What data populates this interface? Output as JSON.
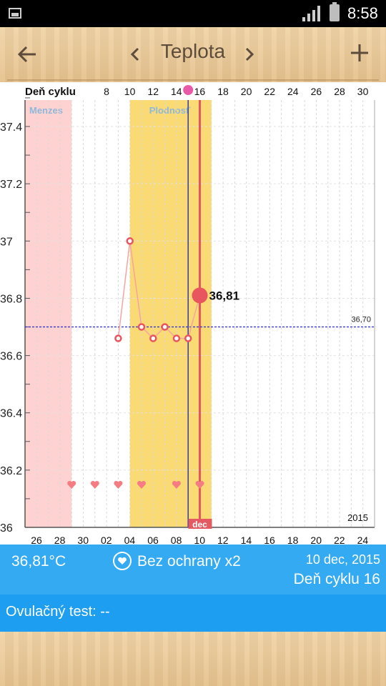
{
  "status_bar": {
    "time": "8:58",
    "icons": [
      "image-icon",
      "signal-icon",
      "battery-icon"
    ]
  },
  "header": {
    "title": "Teplota",
    "back_icon": "arrow-left-icon",
    "prev_icon": "chevron-left-icon",
    "next_icon": "chevron-right-icon",
    "add_icon": "plus-icon"
  },
  "chart_data": {
    "type": "line",
    "top_axis_label": "Deň cyklu",
    "top_ticks": [
      "8",
      "10",
      "12",
      "14",
      "16",
      "18",
      "20",
      "22",
      "24",
      "26",
      "28",
      "30"
    ],
    "bottom_ticks": [
      "26",
      "28",
      "30",
      "02",
      "04",
      "06",
      "08",
      "10",
      "12",
      "14",
      "16",
      "18",
      "20",
      "22",
      "24"
    ],
    "y_ticks": [
      "36",
      "36.2",
      "36.4",
      "36.6",
      "36.8",
      "37",
      "37.2",
      "37.4"
    ],
    "ylim": [
      36.0,
      37.5
    ],
    "regions": [
      {
        "label": "Menzes",
        "x_start": 25,
        "x_end": 29,
        "color": "#ffd2d2"
      },
      {
        "label": "Plodnosť",
        "x_start": 34,
        "x_end": 41,
        "color": "#f9da74"
      }
    ],
    "series": [
      {
        "x": [
          33,
          34,
          35,
          36,
          37,
          38,
          39,
          40
        ],
        "y": [
          36.66,
          37.0,
          36.7,
          36.66,
          36.7,
          36.66,
          36.66,
          36.81
        ]
      }
    ],
    "current_point": {
      "x": 40,
      "y": 36.81,
      "label": "36,81"
    },
    "coverline": {
      "y": 36.7,
      "label": "36,70"
    },
    "ovulation_day_x": 39,
    "hearts_x": [
      29,
      31,
      33,
      35,
      38,
      40
    ],
    "month_marker": {
      "x": 40,
      "label": "dec"
    },
    "year_label": "2015",
    "colors": {
      "line": "#f7a3a3",
      "point": "#e8555f",
      "coverline": "#2a2ad6",
      "today_line": "#e8555f",
      "ovulation_line": "#3a3a99"
    }
  },
  "info": {
    "temperature": "36,81°C",
    "protection": "Bez ochrany x2",
    "date": "10 dec, 2015",
    "cycle_day": "Deň cyklu 16",
    "heart_icon": "heart-circle-icon"
  },
  "ovulation": {
    "label": "Ovulačný test: --"
  }
}
